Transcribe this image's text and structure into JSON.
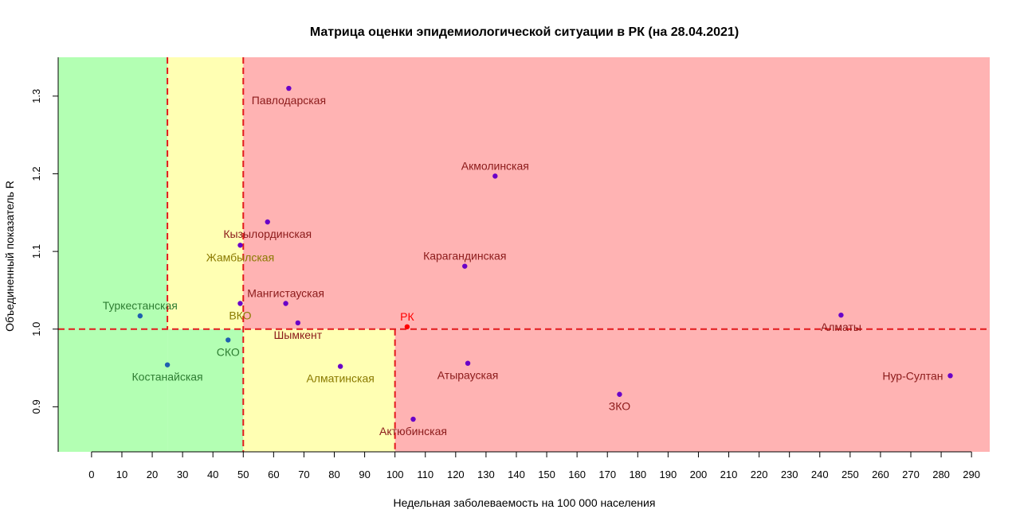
{
  "chart_data": {
    "type": "scatter",
    "title": "Матрица оценки эпидемиологической ситуации в РК (на 28.04.2021)",
    "xlabel": "Недельная заболеваемость на 100 000 населения",
    "ylabel": "Объединенный показатель R",
    "xlim": [
      -11,
      296
    ],
    "ylim": [
      0.842,
      1.35
    ],
    "x_ticks": [
      0,
      10,
      20,
      30,
      40,
      50,
      60,
      70,
      80,
      90,
      100,
      110,
      120,
      130,
      140,
      150,
      160,
      170,
      180,
      190,
      200,
      210,
      220,
      230,
      240,
      250,
      260,
      270,
      280,
      290
    ],
    "x_tick_labels": [
      "0",
      "10",
      "20",
      "30",
      "40",
      "50",
      "60",
      "70",
      "80",
      "90",
      "100",
      "110",
      "120",
      "130",
      "140",
      "150",
      "160",
      "170",
      "180",
      "190",
      "200",
      "210",
      "220",
      "230",
      "240",
      "250",
      "260",
      "270",
      "280",
      "290"
    ],
    "y_ticks": [
      0.9,
      1.0,
      1.1,
      1.2,
      1.3
    ],
    "y_tick_labels": [
      "0.9",
      "1.0",
      "1.1",
      "1.2",
      "1.3"
    ],
    "zones": [
      {
        "name": "green",
        "color": "#b3ffb3",
        "x": [
          -11,
          25
        ],
        "y": [
          0.842,
          1.35
        ]
      },
      {
        "name": "green",
        "color": "#b3ffb3",
        "x": [
          25,
          50
        ],
        "y": [
          0.842,
          1.0
        ]
      },
      {
        "name": "yellow",
        "color": "#ffffb3",
        "x": [
          25,
          50
        ],
        "y": [
          1.0,
          1.35
        ]
      },
      {
        "name": "yellow",
        "color": "#ffffb3",
        "x": [
          50,
          100
        ],
        "y": [
          0.842,
          1.0
        ]
      },
      {
        "name": "red",
        "color": "#ffb3b3",
        "x": [
          50,
          296
        ],
        "y": [
          1.0,
          1.35
        ]
      },
      {
        "name": "red",
        "color": "#ffb3b3",
        "x": [
          100,
          296
        ],
        "y": [
          0.842,
          1.0
        ]
      }
    ],
    "reference_lines": [
      {
        "orientation": "vertical",
        "x": 25,
        "y": [
          1.0,
          1.35
        ]
      },
      {
        "orientation": "vertical",
        "x": 50,
        "y": [
          0.842,
          1.35
        ]
      },
      {
        "orientation": "vertical",
        "x": 100,
        "y": [
          0.842,
          1.0
        ]
      },
      {
        "orientation": "horizontal",
        "y": 1.0,
        "x": [
          -11,
          296
        ]
      }
    ],
    "reference_line_color": "#e31a1c",
    "points": [
      {
        "label": "Павлодарская",
        "x": 65,
        "y": 1.31,
        "color": "#6a00c8",
        "label_color": "#8b1a1a",
        "label_pos": "below"
      },
      {
        "label": "Акмолинская",
        "x": 133,
        "y": 1.197,
        "color": "#6a00c8",
        "label_color": "#8b1a1a",
        "label_pos": "above"
      },
      {
        "label": "Кызылординская",
        "x": 58,
        "y": 1.138,
        "color": "#6a00c8",
        "label_color": "#8b1a1a",
        "label_pos": "below"
      },
      {
        "label": "Жамбылская",
        "x": 49,
        "y": 1.108,
        "color": "#6a00c8",
        "label_color": "#8a7a00",
        "label_pos": "below"
      },
      {
        "label": "Карагандинская",
        "x": 123,
        "y": 1.081,
        "color": "#6a00c8",
        "label_color": "#8b1a1a",
        "label_pos": "above"
      },
      {
        "label": "Мангистауская",
        "x": 64,
        "y": 1.033,
        "color": "#6a00c8",
        "label_color": "#8b1a1a",
        "label_pos": "above"
      },
      {
        "label": "ВКО",
        "x": 49,
        "y": 1.033,
        "color": "#6a00c8",
        "label_color": "#8a7a00",
        "label_pos": "below"
      },
      {
        "label": "Шымкент",
        "x": 68,
        "y": 1.008,
        "color": "#6a00c8",
        "label_color": "#8b1a1a",
        "label_pos": "below"
      },
      {
        "label": "Туркестанская",
        "x": 16,
        "y": 1.017,
        "color": "#1f5fb0",
        "label_color": "#2e7d32",
        "label_pos": "above"
      },
      {
        "label": "СКО",
        "x": 45,
        "y": 0.986,
        "color": "#1f5fb0",
        "label_color": "#2e7d32",
        "label_pos": "below"
      },
      {
        "label": "Костанайская",
        "x": 25,
        "y": 0.954,
        "color": "#1f5fb0",
        "label_color": "#2e7d32",
        "label_pos": "below"
      },
      {
        "label": "Алматинская",
        "x": 82,
        "y": 0.952,
        "color": "#6a00c8",
        "label_color": "#8a7a00",
        "label_pos": "below"
      },
      {
        "label": "РК",
        "x": 104,
        "y": 1.003,
        "color": "#ff0000",
        "label_color": "#ff0000",
        "label_pos": "above"
      },
      {
        "label": "Атырауская",
        "x": 124,
        "y": 0.956,
        "color": "#6a00c8",
        "label_color": "#8b1a1a",
        "label_pos": "below"
      },
      {
        "label": "Актюбинская",
        "x": 106,
        "y": 0.884,
        "color": "#6a00c8",
        "label_color": "#8b1a1a",
        "label_pos": "below"
      },
      {
        "label": "ЗКО",
        "x": 174,
        "y": 0.916,
        "color": "#6a00c8",
        "label_color": "#8b1a1a",
        "label_pos": "below"
      },
      {
        "label": "Алматы",
        "x": 247,
        "y": 1.018,
        "color": "#6a00c8",
        "label_color": "#8b1a1a",
        "label_pos": "below"
      },
      {
        "label": "Нур-Султан",
        "x": 283,
        "y": 0.94,
        "color": "#6a00c8",
        "label_color": "#8b1a1a",
        "label_pos": "left"
      }
    ],
    "grid": false,
    "legend": "none"
  }
}
